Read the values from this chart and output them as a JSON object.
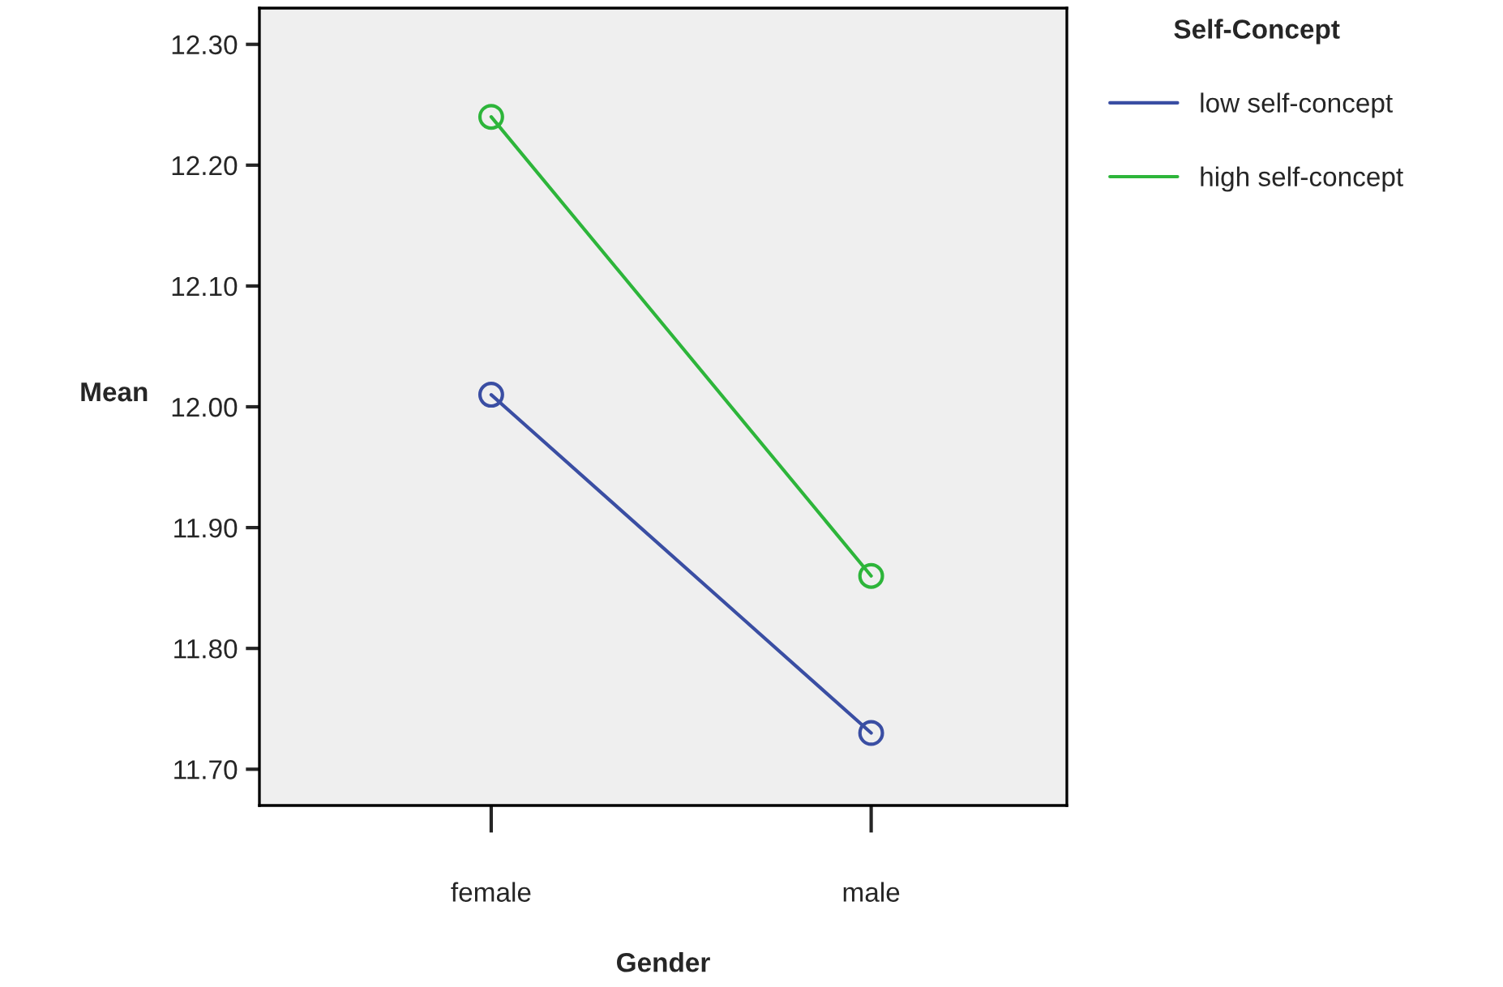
{
  "chart_data": {
    "type": "line",
    "xlabel": "Gender",
    "ylabel": "Mean",
    "legend_title": "Self-Concept",
    "categories": [
      "female",
      "male"
    ],
    "series": [
      {
        "name": "low self-concept",
        "color": "#3a4ea3",
        "values": [
          12.01,
          11.73
        ]
      },
      {
        "name": "high self-concept",
        "color": "#2db53a",
        "values": [
          12.24,
          11.86
        ]
      }
    ],
    "ylim": [
      11.67,
      12.33
    ],
    "yticks": [
      {
        "value": 11.7,
        "label": "11.70"
      },
      {
        "value": 11.8,
        "label": "11.80"
      },
      {
        "value": 11.9,
        "label": "11.90"
      },
      {
        "value": 12.0,
        "label": "12.00"
      },
      {
        "value": 12.1,
        "label": "12.10"
      },
      {
        "value": 12.2,
        "label": "12.20"
      },
      {
        "value": 12.3,
        "label": "12.30"
      }
    ],
    "marker": "circle",
    "line_style": "solid",
    "grid": false,
    "legend": "top right"
  }
}
